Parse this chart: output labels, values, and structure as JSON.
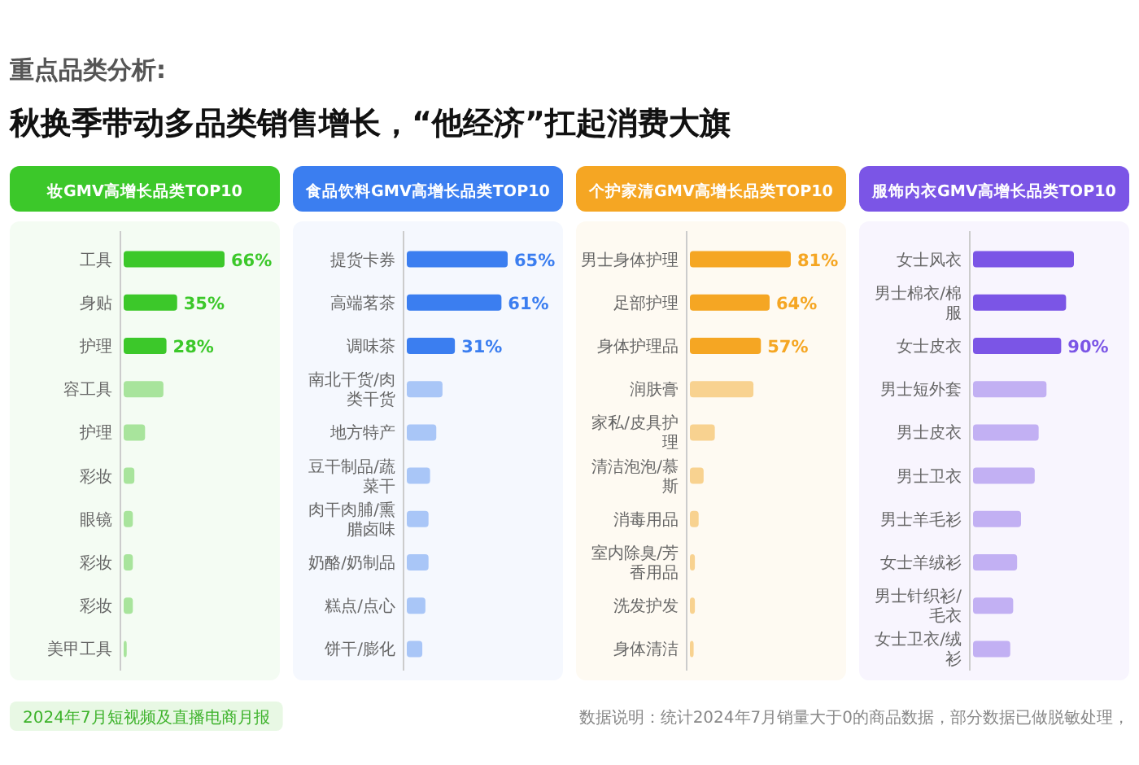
{
  "chart_data": [
    {
      "type": "bar",
      "orientation": "horizontal",
      "title": "妆GMV高增长品类TOP10",
      "annotations": [
        "重点品类分析:",
        "秋换季带动多品类销售增长，“他经济”扛起消费大旗",
        "2024年7月短视频及直播电商月报",
        "数据说明：统计2024年7月销量大于0的商品数据，部分数据已做脱敏处理，"
      ],
      "categories": [
        "工具",
        "身贴",
        "护理",
        "容工具",
        "护理",
        "彩妆",
        "眼镜",
        "彩妆",
        "彩妆",
        "美甲工具"
      ],
      "values": [
        66,
        35,
        28,
        26,
        14,
        7,
        6,
        6,
        6,
        2
      ],
      "value_labels": [
        "66%",
        "35%",
        "28%",
        null,
        null,
        null,
        null,
        null,
        null,
        null
      ],
      "colors": [
        "#3cc82a",
        "#3cc82a",
        "#3cc82a",
        "#a8e49c",
        "#a8e49c",
        "#a8e49c",
        "#a8e49c",
        "#a8e49c",
        "#a8e49c",
        "#a8e49c"
      ]
    },
    {
      "type": "bar",
      "orientation": "horizontal",
      "title": "食品饮料GMV高增长品类TOP10",
      "categories": [
        "提货卡券",
        "高端茗茶",
        "调味茶",
        "南北干货/肉类干货",
        "地方特产",
        "豆干制品/蔬菜干",
        "肉干肉脯/熏腊卤味",
        "奶酪/奶制品",
        "糕点/点心",
        "饼干/膨化"
      ],
      "values": [
        65,
        61,
        31,
        23,
        19,
        15,
        14,
        14,
        12,
        10
      ],
      "value_labels": [
        "65%",
        "61%",
        "31%",
        null,
        null,
        null,
        null,
        null,
        null,
        null
      ],
      "colors": [
        "#3b7ef0",
        "#3b7ef0",
        "#3b7ef0",
        "#a9c6f7",
        "#a9c6f7",
        "#a9c6f7",
        "#a9c6f7",
        "#a9c6f7",
        "#a9c6f7",
        "#a9c6f7"
      ]
    },
    {
      "type": "bar",
      "orientation": "horizontal",
      "title": "个护家清GMV高增长品类TOP10",
      "categories": [
        "男士身体护理",
        "足部护理",
        "身体护理品",
        "润肤膏",
        "家私/皮具护理",
        "清洁泡泡/慕斯",
        "消毒用品",
        "室内除臭/芳香用品",
        "洗发护发",
        "身体清洁"
      ],
      "values": [
        81,
        64,
        57,
        51,
        20,
        11,
        7,
        4,
        4,
        3
      ],
      "value_labels": [
        "81%",
        "64%",
        "57%",
        null,
        null,
        null,
        null,
        null,
        null,
        null
      ],
      "colors": [
        "#f5a623",
        "#f5a623",
        "#f5a623",
        "#f8d290",
        "#f8d290",
        "#f8d290",
        "#f8d290",
        "#f8d290",
        "#f8d290",
        "#f8d290"
      ]
    },
    {
      "type": "bar",
      "orientation": "horizontal",
      "title": "服饰内衣GMV高增长品类TOP10",
      "categories": [
        "女士风衣",
        "男士棉衣/棉服",
        "女士皮衣",
        "男士短外套",
        "男士皮衣",
        "男士卫衣",
        "男士羊毛衫",
        "女士羊绒衫",
        "男士针织衫/毛衣",
        "女士卫衣/绒衫"
      ],
      "values": [
        103,
        95,
        90,
        75,
        67,
        63,
        49,
        45,
        41,
        38
      ],
      "value_labels": [
        null,
        null,
        "90%",
        null,
        null,
        null,
        null,
        null,
        null,
        null
      ],
      "colors": [
        "#7b55e6",
        "#7b55e6",
        "#7b55e6",
        "#c2b0f3",
        "#c2b0f3",
        "#c2b0f3",
        "#c2b0f3",
        "#c2b0f3",
        "#c2b0f3",
        "#c2b0f3"
      ]
    }
  ]
}
